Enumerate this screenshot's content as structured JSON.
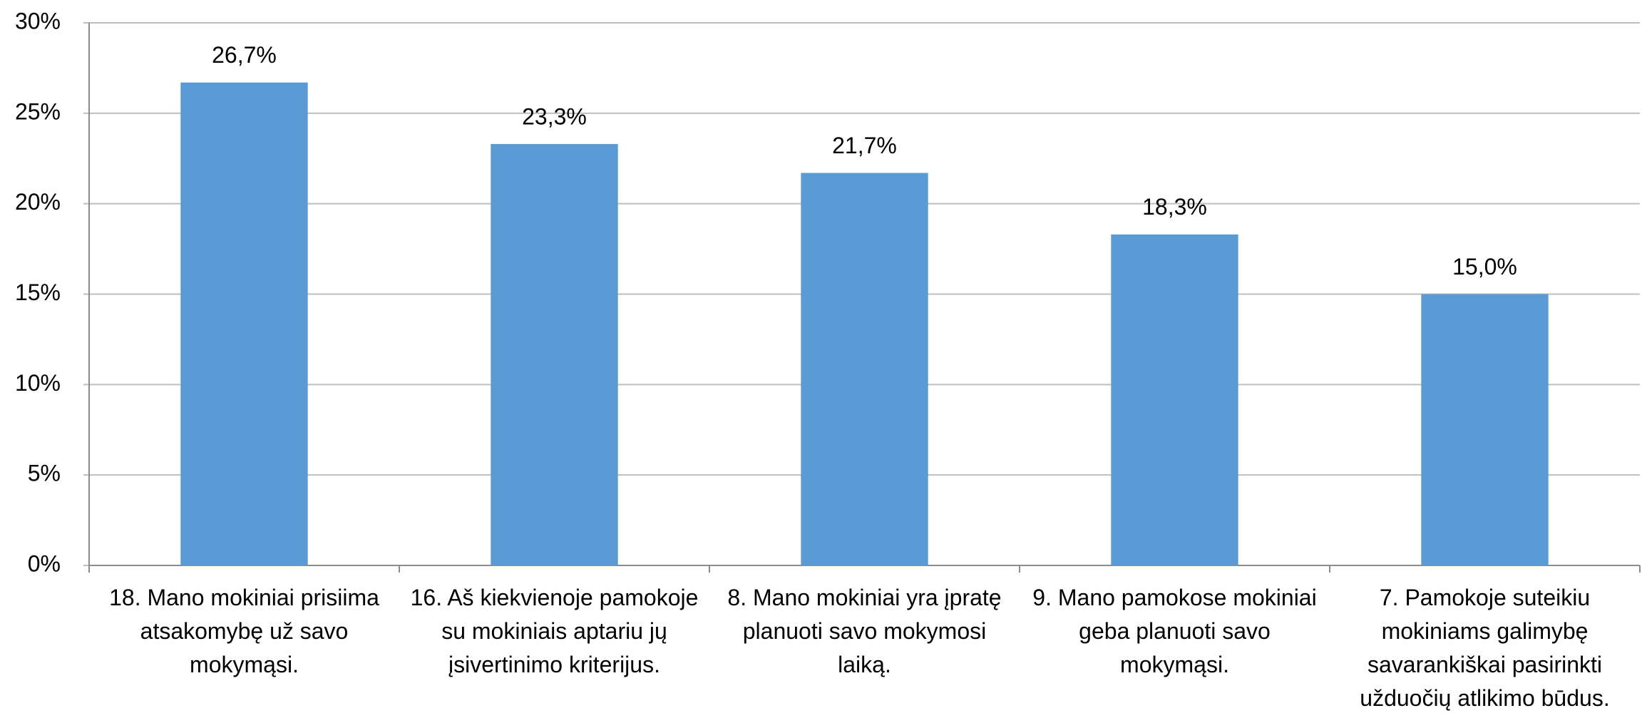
{
  "chart_data": {
    "type": "bar",
    "categories": [
      "18. Mano mokiniai prisiima atsakomybę už savo mokymąsi.",
      "16. Aš kiekvienoje pamokoje su mokiniais aptariu jų įsivertinimo kriterijus.",
      "8. Mano mokiniai yra įpratę planuoti savo mokymosi laiką.",
      "9. Mano pamokose mokiniai geba planuoti savo mokymąsi.",
      "7. Pamokoje suteikiu mokiniams galimybę savarankiškai pasirinkti užduočių atlikimo būdus."
    ],
    "values": [
      26.7,
      23.3,
      21.7,
      18.3,
      15.0
    ],
    "value_labels": [
      "26,7%",
      "23,3%",
      "21,7%",
      "18,3%",
      "15,0%"
    ],
    "color": "#5b9bd5",
    "ylim": [
      0,
      30
    ],
    "yticks": [
      {
        "value": 0,
        "label": "0%"
      },
      {
        "value": 5,
        "label": "5%"
      },
      {
        "value": 10,
        "label": "10%"
      },
      {
        "value": 15,
        "label": "15%"
      },
      {
        "value": 20,
        "label": "20%"
      },
      {
        "value": 25,
        "label": "25%"
      },
      {
        "value": 30,
        "label": "30%"
      }
    ],
    "grid": true
  }
}
